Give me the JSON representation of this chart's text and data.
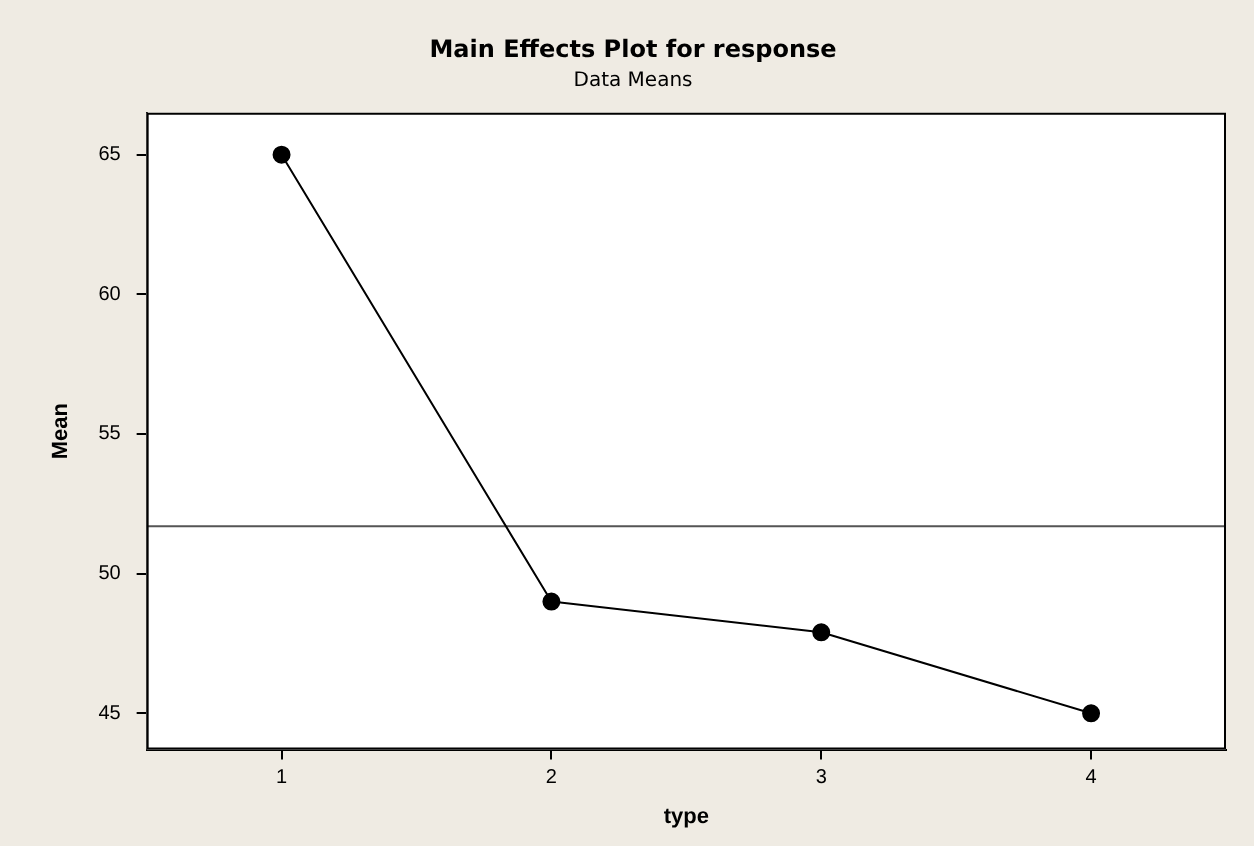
{
  "chart_data": {
    "type": "line",
    "title": "Main Effects Plot for response",
    "subtitle": "Data Means",
    "xlabel": "type",
    "ylabel": "Mean",
    "categories": [
      "1",
      "2",
      "3",
      "4"
    ],
    "series": [
      {
        "color": "#000000",
        "values": [
          65,
          49,
          47.9,
          45
        ]
      }
    ],
    "ylim": [
      43.7,
      66.5
    ],
    "yticks": [
      45,
      50,
      55,
      60,
      65
    ],
    "ref_lines": [
      {
        "axis": "y",
        "value": 51.7,
        "color": "#555555"
      }
    ],
    "grid": false,
    "legend": false,
    "marker": "circle",
    "line_style": "solid"
  }
}
